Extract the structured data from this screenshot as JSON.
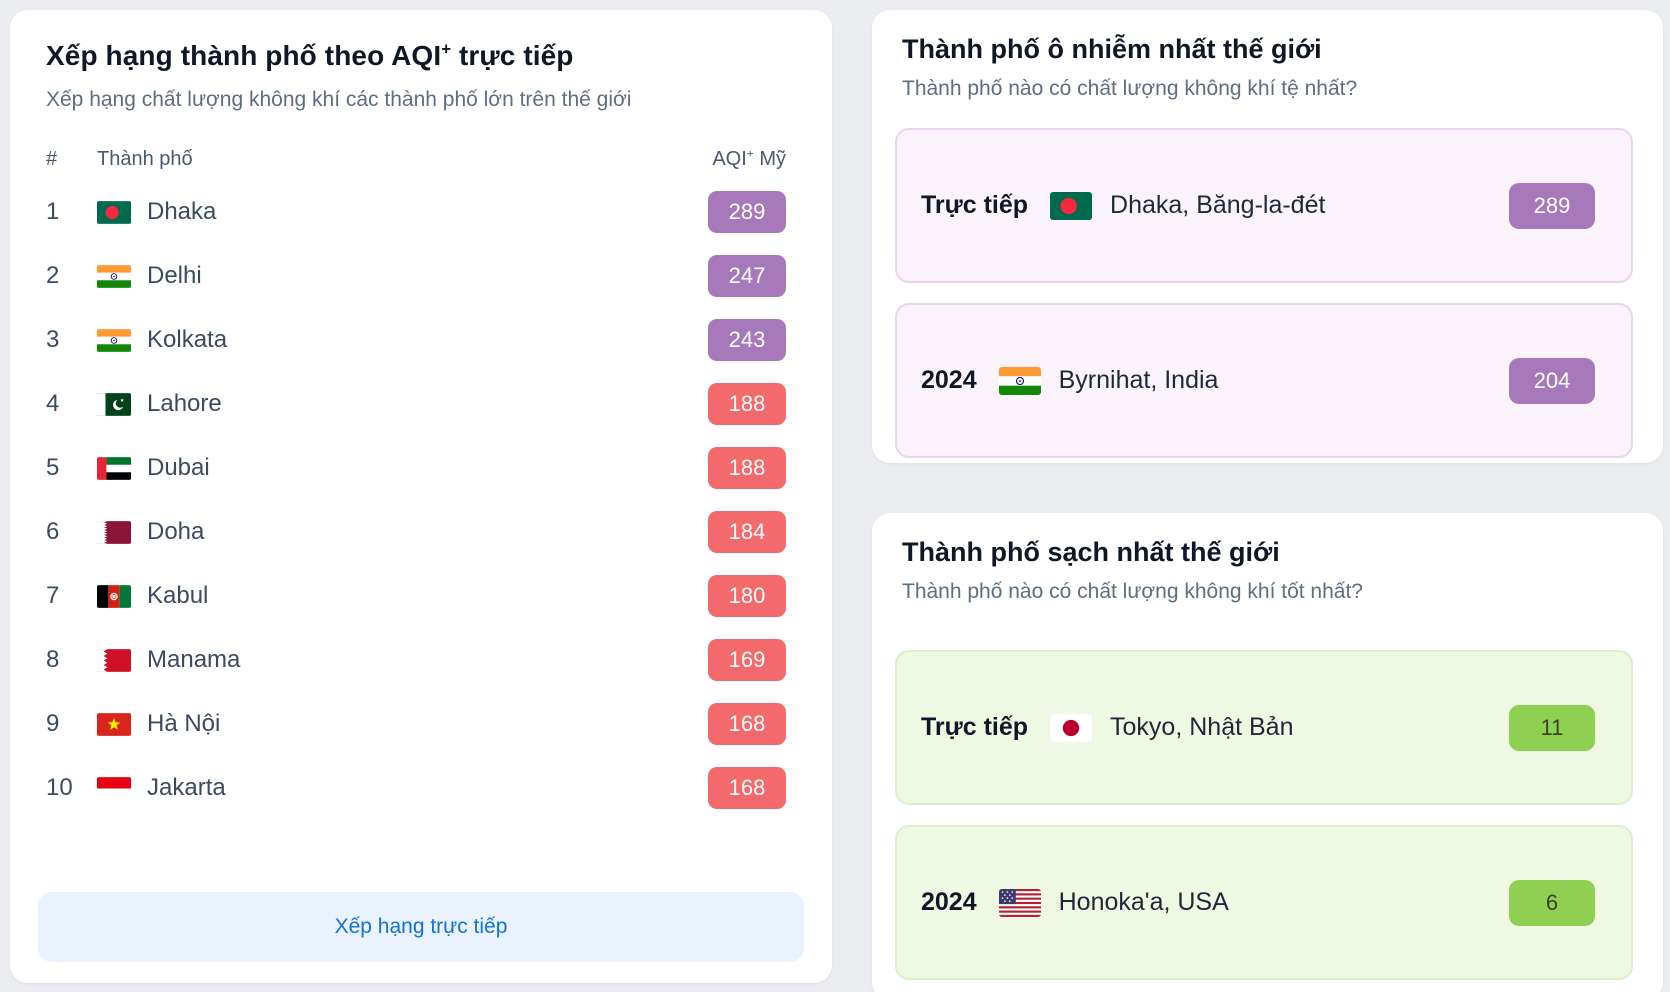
{
  "colors": {
    "page_bg": "#ebedf0",
    "badge_purple_bg": "#a779ba",
    "badge_purple_text": "#ffffff",
    "badge_red_bg": "#f4696b",
    "badge_red_text": "#ffffff",
    "badge_green_bg": "#8fd052",
    "badge_green_text": "#37421f",
    "footer_button_bg": "#e9f2fd",
    "footer_button_text": "#1273d3",
    "polluted_box_bg": "#fbf3fc",
    "polluted_box_border": "#ecd4f1",
    "clean_box_bg": "#eff8e3",
    "clean_box_border": "#dcefc8"
  },
  "left_card": {
    "title_prefix": "Xếp hạng thành phố theo AQI",
    "title_sup": "+",
    "title_suffix": " trực tiếp",
    "subtitle": "Xếp hạng chất lượng không khí các thành phố lớn trên thế giới",
    "table": {
      "header": {
        "rank": "#",
        "city": "Thành phố",
        "aqi_prefix": "AQI",
        "aqi_sup": "+",
        "aqi_suffix": " Mỹ"
      },
      "rows": [
        {
          "rank": "1",
          "flag": "bd",
          "city": "Dhaka",
          "aqi": "289",
          "level": "purple"
        },
        {
          "rank": "2",
          "flag": "in",
          "city": "Delhi",
          "aqi": "247",
          "level": "purple"
        },
        {
          "rank": "3",
          "flag": "in",
          "city": "Kolkata",
          "aqi": "243",
          "level": "purple"
        },
        {
          "rank": "4",
          "flag": "pk",
          "city": "Lahore",
          "aqi": "188",
          "level": "red"
        },
        {
          "rank": "5",
          "flag": "ae",
          "city": "Dubai",
          "aqi": "188",
          "level": "red"
        },
        {
          "rank": "6",
          "flag": "qa",
          "city": "Doha",
          "aqi": "184",
          "level": "red"
        },
        {
          "rank": "7",
          "flag": "af",
          "city": "Kabul",
          "aqi": "180",
          "level": "red"
        },
        {
          "rank": "8",
          "flag": "bh",
          "city": "Manama",
          "aqi": "169",
          "level": "red"
        },
        {
          "rank": "9",
          "flag": "vn",
          "city": "Hà Nội",
          "aqi": "168",
          "level": "red"
        },
        {
          "rank": "10",
          "flag": "id",
          "city": "Jakarta",
          "aqi": "168",
          "level": "red"
        }
      ]
    },
    "footer_button": "Xếp hạng trực tiếp"
  },
  "right_cards": [
    {
      "title": "Thành phố ô nhiễm nhất thế giới",
      "subtitle": "Thành phố nào có chất lượng không khí tệ nhất?",
      "theme": "purple",
      "boxes": [
        {
          "label": "Trực tiếp",
          "flag": "bd",
          "city": "Dhaka, Băng-la-đét",
          "value": "289",
          "badge": "purple"
        },
        {
          "label": "2024",
          "flag": "in",
          "city": "Byrnihat, India",
          "value": "204",
          "badge": "purple"
        }
      ]
    },
    {
      "title": "Thành phố sạch nhất thế giới",
      "subtitle": "Thành phố nào có chất lượng không khí tốt nhất?",
      "theme": "green",
      "boxes": [
        {
          "label": "Trực tiếp",
          "flag": "jp",
          "city": "Tokyo, Nhật Bản",
          "value": "11",
          "badge": "green"
        },
        {
          "label": "2024",
          "flag": "us",
          "city": "Honoka'a, USA",
          "value": "6",
          "badge": "green"
        }
      ]
    }
  ]
}
